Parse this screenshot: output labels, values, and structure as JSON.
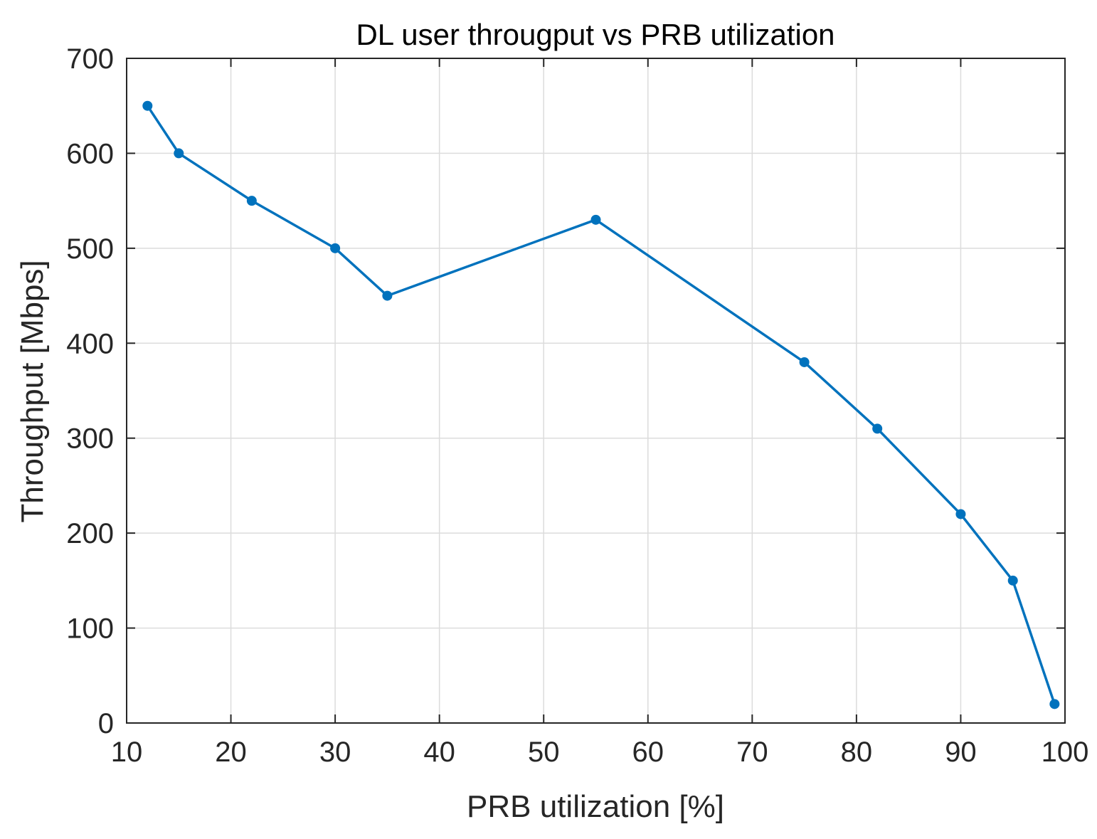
{
  "chart_data": {
    "type": "line",
    "title": "DL user througput vs PRB utilization",
    "xlabel": "PRB utilization [%]",
    "ylabel": "Throughput [Mbps]",
    "xlim": [
      10,
      100
    ],
    "ylim": [
      0,
      700
    ],
    "xticks": [
      "10",
      "20",
      "30",
      "40",
      "50",
      "60",
      "70",
      "80",
      "90",
      "100"
    ],
    "yticks": [
      "0",
      "100",
      "200",
      "300",
      "400",
      "500",
      "600",
      "700"
    ],
    "grid": true,
    "series": [
      {
        "name": "Throughput",
        "color": "#0072BD",
        "marker": "circle",
        "x": [
          12,
          15,
          22,
          30,
          35,
          55,
          75,
          82,
          90,
          95,
          99
        ],
        "y": [
          650,
          600,
          550,
          500,
          450,
          530,
          380,
          310,
          220,
          150,
          20
        ]
      }
    ]
  }
}
